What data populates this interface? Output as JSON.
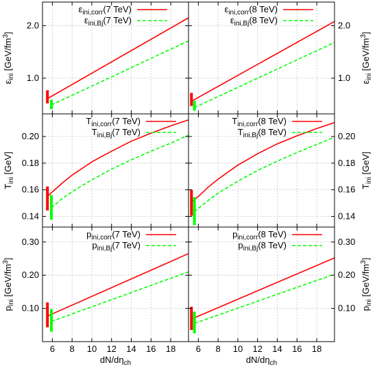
{
  "chart_data": [
    {
      "type": "line",
      "quantity": "eps",
      "energy": "7 TeV",
      "ylabel": "ε_ini [GeV/fm³]",
      "ylabel_side": "left",
      "ylim": [
        0.32,
        2.45
      ],
      "yticks": [
        1.0,
        2.0
      ],
      "ytick_labels": [
        "1.0",
        "2.0"
      ],
      "xlim": [
        5.0,
        19.8
      ],
      "xticks": [
        6,
        8,
        10,
        12,
        14,
        16,
        18
      ],
      "xtick_labels": [],
      "xlabel": "",
      "grid": true,
      "legend_position": "top-left",
      "series": [
        {
          "name": "εini,corr(7 TeV)",
          "style": "solid",
          "color": "#ff0000",
          "x": [
            5.6,
            19.8
          ],
          "y": [
            0.62,
            2.15
          ]
        },
        {
          "name": "εini,Bj(7 TeV)",
          "style": "dashed",
          "color": "#00ff00",
          "x": [
            5.9,
            19.8
          ],
          "y": [
            0.49,
            1.71
          ]
        }
      ],
      "error_bars": [
        {
          "color": "#ff0000",
          "x": 5.5,
          "y_low": 0.52,
          "y_high": 0.77
        },
        {
          "color": "#00ff00",
          "x": 5.9,
          "y_low": 0.41,
          "y_high": 0.59
        }
      ]
    },
    {
      "type": "line",
      "quantity": "eps",
      "energy": "8 TeV",
      "ylabel": "ε_ini [GeV/fm³]",
      "ylabel_side": "right",
      "ylim": [
        0.32,
        2.45
      ],
      "yticks": [
        1.0,
        2.0
      ],
      "ytick_labels": [
        "1.0",
        "2.0"
      ],
      "xlim": [
        5.0,
        19.8
      ],
      "xticks": [
        6,
        8,
        10,
        12,
        14,
        16,
        18
      ],
      "xtick_labels": [],
      "xlabel": "",
      "grid": true,
      "legend_position": "top-left",
      "series": [
        {
          "name": "εini,corr(8 TeV)",
          "style": "solid",
          "color": "#ff0000",
          "x": [
            5.3,
            19.8
          ],
          "y": [
            0.56,
            2.08
          ]
        },
        {
          "name": "εini,Bj(8 TeV)",
          "style": "dashed",
          "color": "#00ff00",
          "x": [
            5.6,
            19.8
          ],
          "y": [
            0.44,
            1.68
          ]
        }
      ],
      "error_bars": [
        {
          "color": "#ff0000",
          "x": 5.3,
          "y_low": 0.47,
          "y_high": 0.72
        },
        {
          "color": "#00ff00",
          "x": 5.6,
          "y_low": 0.38,
          "y_high": 0.57
        }
      ]
    },
    {
      "type": "line",
      "quantity": "T",
      "energy": "7 TeV",
      "ylabel": "T_ini [GeV]",
      "ylabel_side": "left",
      "ylim": [
        0.132,
        0.217
      ],
      "yticks": [
        0.14,
        0.16,
        0.18,
        0.2
      ],
      "ytick_labels": [
        "0.14",
        "0.16",
        "0.18",
        "0.20"
      ],
      "xlim": [
        5.0,
        19.8
      ],
      "xticks": [
        6,
        8,
        10,
        12,
        14,
        16,
        18
      ],
      "xtick_labels": [],
      "xlabel": "",
      "grid": true,
      "legend_position": "top-right",
      "series": [
        {
          "name": "Tini,corr(7 TeV)",
          "style": "solid",
          "color": "#ff0000",
          "x": [
            5.5,
            6,
            7,
            8,
            10,
            12,
            14,
            16,
            18,
            19.8
          ],
          "y": [
            0.155,
            0.1585,
            0.165,
            0.171,
            0.181,
            0.189,
            0.1965,
            0.2025,
            0.208,
            0.2125
          ]
        },
        {
          "name": "Tini,Bj(7 TeV)",
          "style": "dashed",
          "color": "#00ff00",
          "x": [
            5.9,
            7,
            8,
            10,
            12,
            14,
            16,
            18,
            19.8
          ],
          "y": [
            0.1465,
            0.1535,
            0.1585,
            0.1675,
            0.1755,
            0.1825,
            0.189,
            0.195,
            0.201
          ]
        }
      ],
      "error_bars": [
        {
          "color": "#ff0000",
          "x": 5.5,
          "y_low": 0.1445,
          "y_high": 0.1625
        },
        {
          "color": "#00ff00",
          "x": 5.9,
          "y_low": 0.1375,
          "y_high": 0.156
        }
      ]
    },
    {
      "type": "line",
      "quantity": "T",
      "energy": "8 TeV",
      "ylabel": "T_ini [GeV]",
      "ylabel_side": "right",
      "ylim": [
        0.132,
        0.217
      ],
      "yticks": [
        0.14,
        0.16,
        0.18,
        0.2
      ],
      "ytick_labels": [
        "0.14",
        "0.16",
        "0.18",
        "0.20"
      ],
      "xlim": [
        5.0,
        19.8
      ],
      "xticks": [
        6,
        8,
        10,
        12,
        14,
        16,
        18
      ],
      "xtick_labels": [],
      "xlabel": "",
      "grid": true,
      "legend_position": "top-right",
      "series": [
        {
          "name": "Tini,corr(8 TeV)",
          "style": "solid",
          "color": "#ff0000",
          "x": [
            5.3,
            6,
            7,
            8,
            10,
            12,
            14,
            16,
            18,
            19.8
          ],
          "y": [
            0.151,
            0.155,
            0.162,
            0.168,
            0.1785,
            0.187,
            0.1945,
            0.2005,
            0.206,
            0.2105
          ]
        },
        {
          "name": "Tini,Bj(8 TeV)",
          "style": "dashed",
          "color": "#00ff00",
          "x": [
            5.6,
            6,
            7,
            8,
            10,
            12,
            14,
            16,
            18,
            19.8
          ],
          "y": [
            0.1435,
            0.146,
            0.152,
            0.1575,
            0.1665,
            0.1745,
            0.1815,
            0.188,
            0.194,
            0.1995
          ]
        }
      ],
      "error_bars": [
        {
          "color": "#ff0000",
          "x": 5.3,
          "y_low": 0.1405,
          "y_high": 0.16
        },
        {
          "color": "#00ff00",
          "x": 5.6,
          "y_low": 0.1335,
          "y_high": 0.1545
        }
      ]
    },
    {
      "type": "line",
      "quantity": "p",
      "energy": "7 TeV",
      "ylabel": "p_ini [GeV/fm³]",
      "ylabel_side": "left",
      "ylim": [
        0.0,
        0.345
      ],
      "yticks": [
        0.1,
        0.2,
        0.3
      ],
      "ytick_labels": [
        "0.10",
        "0.20",
        "0.30"
      ],
      "xlim": [
        5.0,
        19.8
      ],
      "xticks": [
        6,
        8,
        10,
        12,
        14,
        16,
        18
      ],
      "xtick_labels": [
        "6",
        "8",
        "10",
        "12",
        "14",
        "16",
        "18"
      ],
      "xlabel": "dN/dηch",
      "grid": true,
      "legend_position": "top-right",
      "series": [
        {
          "name": "pini,corr(7 TeV)",
          "style": "solid",
          "color": "#ff0000",
          "x": [
            5.5,
            19.8
          ],
          "y": [
            0.077,
            0.265
          ]
        },
        {
          "name": "pini,Bj(7 TeV)",
          "style": "dashed",
          "color": "#00ff00",
          "x": [
            5.9,
            19.8
          ],
          "y": [
            0.061,
            0.21
          ]
        }
      ],
      "error_bars": [
        {
          "color": "#ff0000",
          "x": 5.5,
          "y_low": 0.043,
          "y_high": 0.118
        },
        {
          "color": "#00ff00",
          "x": 5.9,
          "y_low": 0.03,
          "y_high": 0.098
        }
      ]
    },
    {
      "type": "line",
      "quantity": "p",
      "energy": "8 TeV",
      "ylabel": "p_ini [GeV/fm³]",
      "ylabel_side": "right",
      "ylim": [
        0.0,
        0.345
      ],
      "yticks": [
        0.1,
        0.2,
        0.3
      ],
      "ytick_labels": [
        "0.10",
        "0.20",
        "0.30"
      ],
      "xlim": [
        5.0,
        19.8
      ],
      "xticks": [
        6,
        8,
        10,
        12,
        14,
        16,
        18
      ],
      "xtick_labels": [
        "6",
        "8",
        "10",
        "12",
        "14",
        "16",
        "18"
      ],
      "xlabel": "dN/dηch",
      "grid": true,
      "legend_position": "top-right",
      "series": [
        {
          "name": "pini,corr(8 TeV)",
          "style": "solid",
          "color": "#ff0000",
          "x": [
            5.3,
            19.8
          ],
          "y": [
            0.068,
            0.252
          ]
        },
        {
          "name": "pini,Bj(8 TeV)",
          "style": "dashed",
          "color": "#00ff00",
          "x": [
            5.6,
            19.8
          ],
          "y": [
            0.055,
            0.203
          ]
        }
      ],
      "error_bars": [
        {
          "color": "#ff0000",
          "x": 5.3,
          "y_low": 0.035,
          "y_high": 0.105
        },
        {
          "color": "#00ff00",
          "x": 5.6,
          "y_low": 0.025,
          "y_high": 0.09
        }
      ]
    }
  ]
}
